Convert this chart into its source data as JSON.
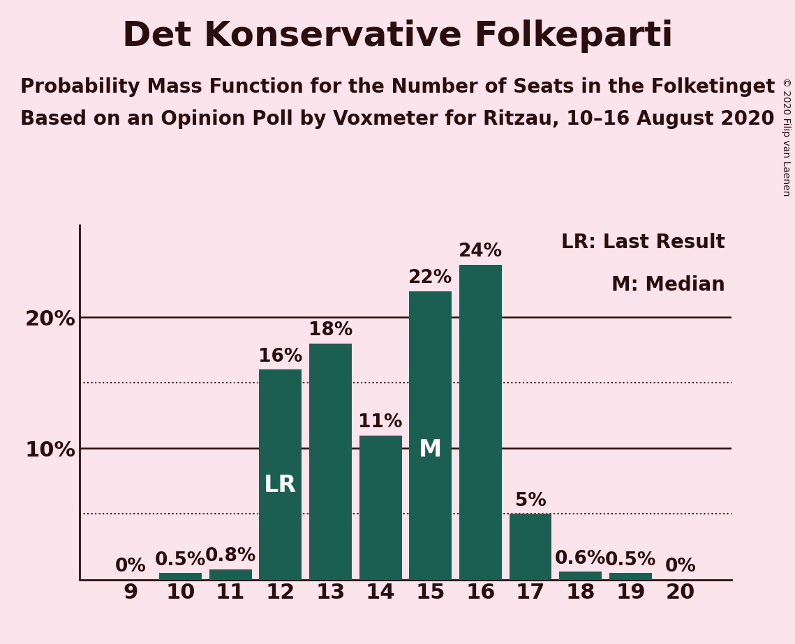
{
  "title": "Det Konservative Folkeparti",
  "subtitle1": "Probability Mass Function for the Number of Seats in the Folketinget",
  "subtitle2": "Based on an Opinion Poll by Voxmeter for Ritzau, 10–16 August 2020",
  "copyright": "© 2020 Filip van Laenen",
  "seats": [
    9,
    10,
    11,
    12,
    13,
    14,
    15,
    16,
    17,
    18,
    19,
    20
  ],
  "values": [
    0.0,
    0.5,
    0.8,
    16.0,
    18.0,
    11.0,
    22.0,
    24.0,
    5.0,
    0.6,
    0.5,
    0.0
  ],
  "labels": [
    "0%",
    "0.5%",
    "0.8%",
    "16%",
    "18%",
    "11%",
    "22%",
    "24%",
    "5%",
    "0.6%",
    "0.5%",
    "0%"
  ],
  "bar_color": "#1b5e52",
  "background_color": "#fce4ec",
  "text_color": "#2b0d0d",
  "lr_seat": 12,
  "median_seat": 15,
  "yticks": [
    10,
    20
  ],
  "ytick_labels": [
    "10%",
    "20%"
  ],
  "dotted_lines": [
    5,
    15
  ],
  "ylim": [
    0,
    27
  ],
  "legend_text1": "LR: Last Result",
  "legend_text2": "M: Median",
  "title_fontsize": 36,
  "subtitle_fontsize": 20,
  "label_fontsize": 19,
  "tick_fontsize": 22,
  "legend_fontsize": 20,
  "copyright_fontsize": 10
}
